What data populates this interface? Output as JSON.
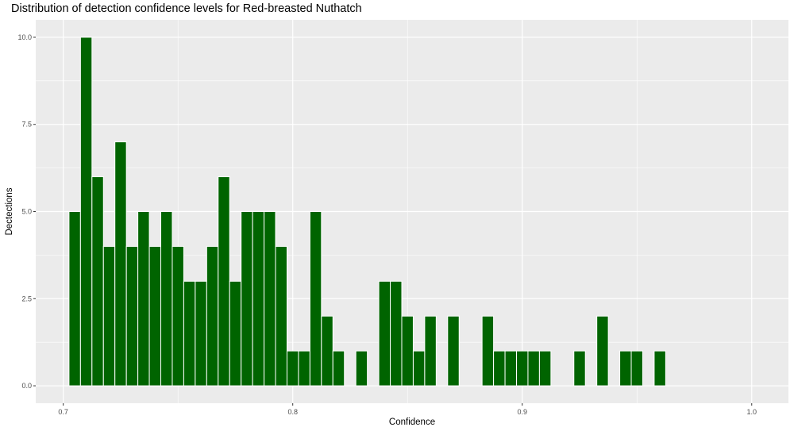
{
  "chart_data": {
    "type": "bar",
    "title": "Distribution of detection confidence levels for Red-breasted Nuthatch",
    "xlabel": "Confidence",
    "ylabel": "Dectections",
    "xlim": [
      0.688,
      1.016
    ],
    "ylim": [
      -0.5,
      10.5
    ],
    "xticks": [
      0.7,
      0.8,
      0.9,
      1.0
    ],
    "xtick_labels": [
      "0.7",
      "0.8",
      "0.9",
      "1.0"
    ],
    "yticks": [
      0,
      2.5,
      5,
      7.5,
      10
    ],
    "ytick_labels": [
      "0.0",
      "2.5",
      "5.0",
      "7.5",
      "10.0"
    ],
    "bin_width": 0.005,
    "bin_centers": [
      0.705,
      0.71,
      0.715,
      0.72,
      0.725,
      0.73,
      0.735,
      0.74,
      0.745,
      0.75,
      0.755,
      0.76,
      0.765,
      0.77,
      0.775,
      0.78,
      0.785,
      0.79,
      0.795,
      0.8,
      0.805,
      0.81,
      0.815,
      0.82,
      0.83,
      0.84,
      0.845,
      0.85,
      0.855,
      0.86,
      0.87,
      0.885,
      0.89,
      0.895,
      0.9,
      0.905,
      0.91,
      0.925,
      0.935,
      0.945,
      0.95,
      0.96
    ],
    "values": [
      5,
      10,
      6,
      4,
      7,
      4,
      5,
      4,
      5,
      4,
      3,
      3,
      4,
      6,
      3,
      5,
      5,
      5,
      4,
      1,
      1,
      5,
      2,
      1,
      1,
      3,
      3,
      2,
      1,
      2,
      2,
      2,
      1,
      1,
      1,
      1,
      1,
      1,
      2,
      1,
      1,
      1
    ],
    "bar_color": "#006400",
    "bar_outline": "#ffffff",
    "panel_background": "#ebebeb",
    "grid_color": "#ffffff",
    "grid": true
  }
}
